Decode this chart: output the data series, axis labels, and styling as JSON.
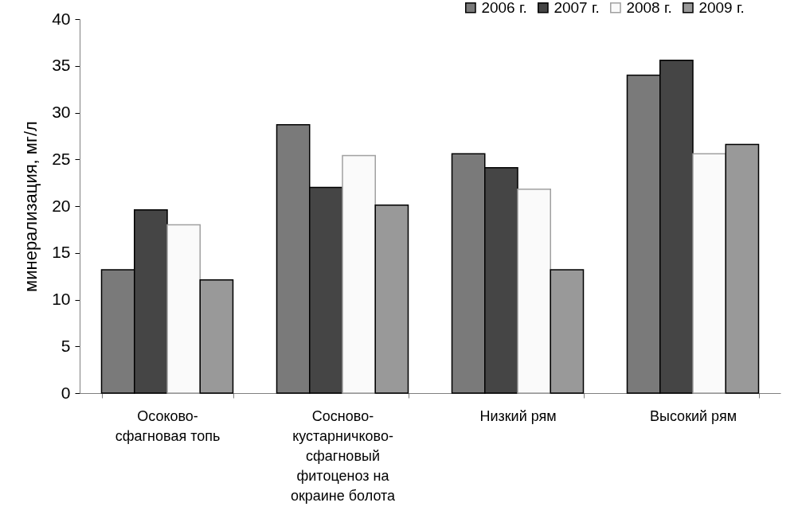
{
  "chart_data": {
    "type": "bar",
    "ylabel": "минерализация, мг/л",
    "categories": [
      "Осоково-сфагновая топь",
      "Сосново-кустарничково-сфагновый фитоценоз на окраине болота",
      "Низкий рям",
      "Высокий рям"
    ],
    "ylim": [
      0,
      40
    ],
    "yticks": [
      0,
      5,
      10,
      15,
      20,
      25,
      30,
      35,
      40
    ],
    "legend": "top right",
    "series": [
      {
        "name": "2006 г.",
        "color": "#7a7a7a",
        "values": [
          13.2,
          28.7,
          25.6,
          34.0
        ]
      },
      {
        "name": "2007 г.",
        "color": "#454545",
        "values": [
          19.6,
          22.0,
          24.1,
          35.6
        ]
      },
      {
        "name": "2008 г.",
        "color": "#fafafa",
        "values": [
          18.0,
          25.4,
          21.8,
          25.6
        ]
      },
      {
        "name": "2009 г.",
        "color": "#999999",
        "values": [
          12.1,
          20.1,
          13.2,
          26.6
        ]
      }
    ]
  }
}
